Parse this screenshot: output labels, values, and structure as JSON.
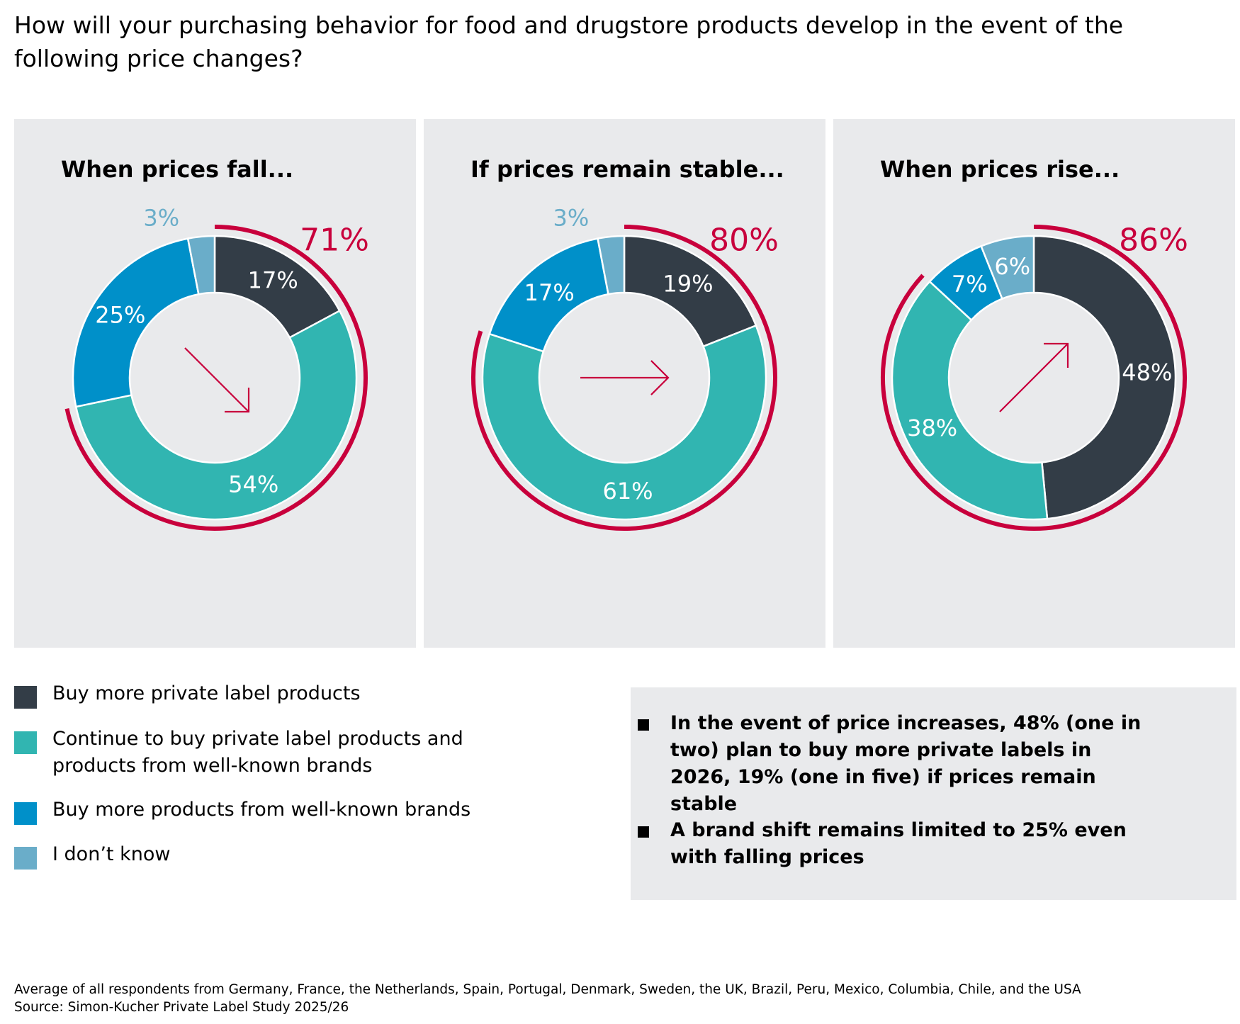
{
  "title": "How will your purchasing behavior for food and drugstore products develop in the event of the following price changes?",
  "colors": {
    "dark": "#333d47",
    "teal": "#31b5b1",
    "blue": "#0090c9",
    "light_blue": "#6aadc9",
    "accent": "#c8003c",
    "panel_bg": "#e9eaec"
  },
  "legend": [
    {
      "label": "Buy more private label products",
      "color": "#333d47"
    },
    {
      "label": "Continue to buy private label products and products from well-known brands",
      "color": "#31b5b1"
    },
    {
      "label": "Buy more products from well-known brands",
      "color": "#0090c9"
    },
    {
      "label": "I don’t know",
      "color": "#6aadc9"
    }
  ],
  "notes": [
    "In the event of price increases, 48% (one in two) plan to buy more private labels in 2026, 19% (one in five) if prices remain stable",
    "A brand shift remains limited to 25% even with falling prices"
  ],
  "footer": {
    "line1": "Average of all respondents from Germany, France, the Netherlands, Spain, Portugal, Denmark, Sweden, the UK, Brazil, Peru, Mexico, Columbia, Chile, and the USA",
    "line2": "Source: Simon-Kucher Private Label Study 2025/26"
  },
  "chart_data": [
    {
      "type": "pie",
      "title": "When prices fall...",
      "arrow": "down-right",
      "categories": [
        "Buy more private label products",
        "Continue to buy private label products and products from well-known brands",
        "Buy more products from well-known brands",
        "I don’t know"
      ],
      "values": [
        17,
        54,
        25,
        3
      ],
      "labels": [
        "17%",
        "54%",
        "25%",
        "3%"
      ],
      "highlight_total": "71%"
    },
    {
      "type": "pie",
      "title": "If prices remain stable...",
      "arrow": "right",
      "categories": [
        "Buy more private label products",
        "Continue to buy private label products and products from well-known brands",
        "Buy more products from well-known brands",
        "I don’t know"
      ],
      "values": [
        19,
        61,
        17,
        3
      ],
      "labels": [
        "19%",
        "61%",
        "17%",
        "3%"
      ],
      "highlight_total": "80%"
    },
    {
      "type": "pie",
      "title": "When prices rise...",
      "arrow": "up-right",
      "categories": [
        "Buy more private label products",
        "Continue to buy private label products and products from well-known brands",
        "Buy more products from well-known brands",
        "I don’t know"
      ],
      "values": [
        48,
        38,
        7,
        6
      ],
      "labels": [
        "48%",
        "38%",
        "7%",
        "6%"
      ],
      "highlight_total": "86%"
    }
  ]
}
